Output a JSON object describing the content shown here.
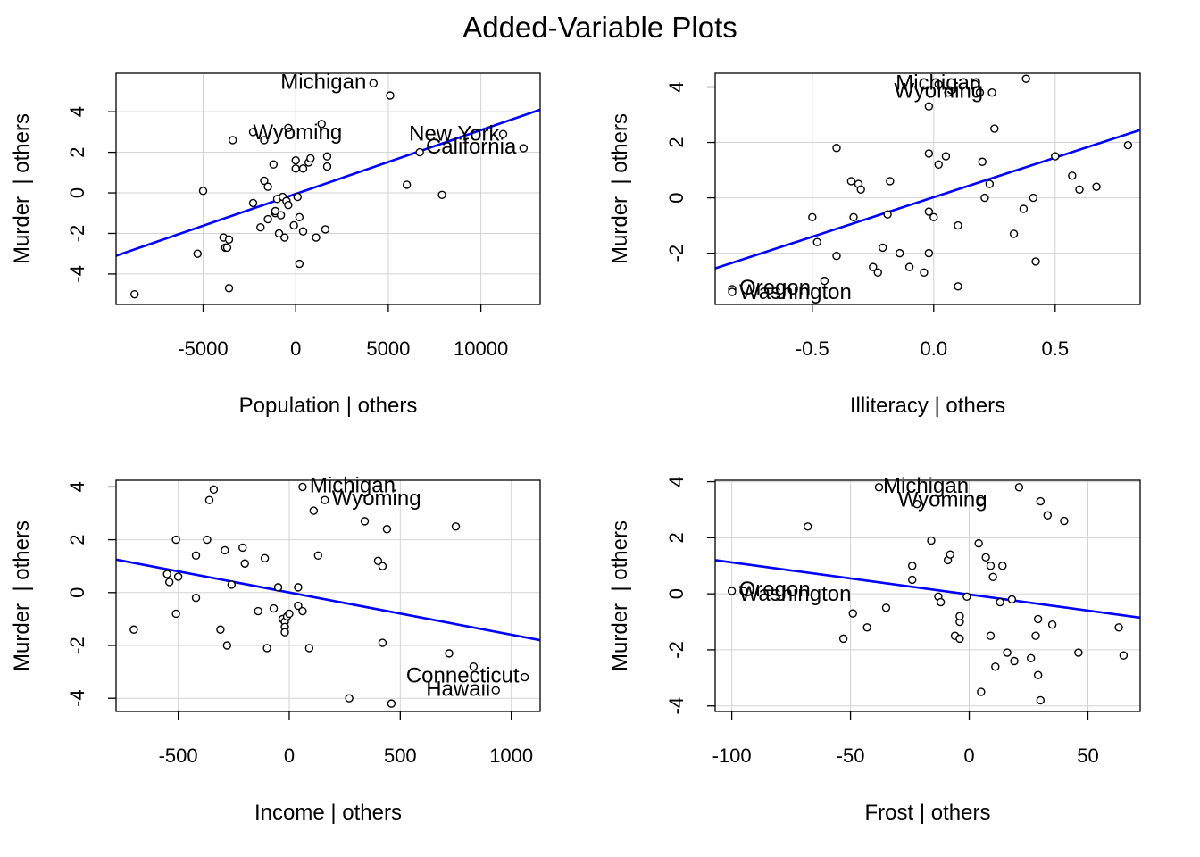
{
  "title": "Added-Variable Plots",
  "chart_data": [
    {
      "type": "scatter",
      "xlabel": "Population | others",
      "ylabel": "Murder  | others",
      "xlim": [
        -9700,
        13200
      ],
      "ylim": [
        -5.5,
        5.9
      ],
      "xticks": [
        -5000,
        0,
        5000,
        10000
      ],
      "xtick_labels": [
        "-5000",
        "0",
        "5000",
        "10000"
      ],
      "yticks": [
        -4,
        -2,
        0,
        2,
        4
      ],
      "ytick_labels": [
        "-4",
        "-2",
        "0",
        "2",
        "4"
      ],
      "grid": true,
      "fit_line": {
        "x": [
          -9700,
          13200
        ],
        "y": [
          -3.1,
          4.1
        ],
        "color": "#0000ff"
      },
      "points": [
        [
          -8700,
          -5.0
        ],
        [
          -5300,
          -3.0
        ],
        [
          -5000,
          0.1
        ],
        [
          -3900,
          -2.2
        ],
        [
          -3800,
          -2.7
        ],
        [
          -3700,
          -2.7
        ],
        [
          -3600,
          -2.3
        ],
        [
          -3600,
          -4.7
        ],
        [
          -3400,
          2.6
        ],
        [
          -2300,
          3.0
        ],
        [
          -2300,
          -0.5
        ],
        [
          -1900,
          -1.7
        ],
        [
          -1700,
          0.6
        ],
        [
          -1700,
          2.6
        ],
        [
          -1500,
          0.3
        ],
        [
          -1500,
          -1.3
        ],
        [
          -1200,
          1.4
        ],
        [
          -1100,
          -1.0
        ],
        [
          -1100,
          -0.9
        ],
        [
          -1000,
          -0.3
        ],
        [
          -900,
          -2.0
        ],
        [
          -800,
          -1.1
        ],
        [
          -700,
          -0.2
        ],
        [
          -600,
          -2.2
        ],
        [
          -500,
          -0.4
        ],
        [
          -400,
          -0.6
        ],
        [
          -400,
          3.2
        ],
        [
          -100,
          -1.6
        ],
        [
          0,
          1.2
        ],
        [
          0,
          1.6
        ],
        [
          100,
          -0.2
        ],
        [
          200,
          -1.2
        ],
        [
          200,
          -3.5
        ],
        [
          400,
          1.2
        ],
        [
          400,
          -1.9
        ],
        [
          700,
          1.5
        ],
        [
          800,
          1.7
        ],
        [
          1100,
          -2.2
        ],
        [
          1400,
          3.4
        ],
        [
          1600,
          -1.8
        ],
        [
          1700,
          1.8
        ],
        [
          1700,
          1.3
        ],
        [
          4200,
          5.4
        ],
        [
          5100,
          4.8
        ],
        [
          6000,
          0.4
        ],
        [
          6700,
          2.0
        ],
        [
          7900,
          -0.1
        ],
        [
          11200,
          2.9
        ],
        [
          12300,
          2.2
        ]
      ],
      "labels": [
        {
          "text": "Michigan",
          "x": 4200,
          "y": 5.4
        },
        {
          "text": "Wyoming",
          "x": 100,
          "y": 2.9
        },
        {
          "text": "New York",
          "x": 11200,
          "y": 2.85
        },
        {
          "text": "California",
          "x": 12300,
          "y": 2.2
        }
      ]
    },
    {
      "type": "scatter",
      "xlabel": "Illiteracy | others",
      "ylabel": "Murder  | others",
      "xlim": [
        -0.9,
        0.85
      ],
      "ylim": [
        -3.85,
        4.5
      ],
      "xticks": [
        -0.5,
        0.0,
        0.5
      ],
      "xtick_labels": [
        "-0.5",
        "0.0",
        "0.5"
      ],
      "yticks": [
        -2,
        0,
        2,
        4
      ],
      "ytick_labels": [
        "-2",
        "0",
        "2",
        "4"
      ],
      "grid": true,
      "fit_line": {
        "x": [
          -0.9,
          0.85
        ],
        "y": [
          -2.55,
          2.45
        ],
        "color": "#0000ff"
      },
      "points": [
        [
          -0.83,
          -3.3
        ],
        [
          -0.83,
          -3.4
        ],
        [
          -0.5,
          -0.7
        ],
        [
          -0.48,
          -1.6
        ],
        [
          -0.45,
          -3.0
        ],
        [
          -0.4,
          -2.1
        ],
        [
          -0.4,
          1.8
        ],
        [
          -0.34,
          0.6
        ],
        [
          -0.33,
          -0.7
        ],
        [
          -0.31,
          0.5
        ],
        [
          -0.3,
          0.3
        ],
        [
          -0.25,
          -2.5
        ],
        [
          -0.23,
          -2.7
        ],
        [
          -0.21,
          -1.8
        ],
        [
          -0.19,
          -0.6
        ],
        [
          -0.18,
          0.6
        ],
        [
          -0.14,
          -2.0
        ],
        [
          -0.1,
          -2.5
        ],
        [
          -0.04,
          -2.7
        ],
        [
          -0.02,
          -2.0
        ],
        [
          -0.02,
          3.3
        ],
        [
          -0.02,
          1.6
        ],
        [
          -0.02,
          -0.5
        ],
        [
          0.0,
          -0.7
        ],
        [
          0.02,
          1.2
        ],
        [
          0.02,
          4.1
        ],
        [
          0.05,
          1.5
        ],
        [
          0.06,
          3.8
        ],
        [
          0.1,
          -3.2
        ],
        [
          0.1,
          -1.0
        ],
        [
          0.17,
          4.1
        ],
        [
          0.19,
          3.8
        ],
        [
          0.2,
          1.3
        ],
        [
          0.21,
          0.0
        ],
        [
          0.23,
          0.5
        ],
        [
          0.24,
          3.8
        ],
        [
          0.25,
          2.5
        ],
        [
          0.33,
          -1.3
        ],
        [
          0.37,
          -0.4
        ],
        [
          0.38,
          4.3
        ],
        [
          0.41,
          0.0
        ],
        [
          0.42,
          -2.3
        ],
        [
          0.5,
          1.5
        ],
        [
          0.57,
          0.8
        ],
        [
          0.6,
          0.3
        ],
        [
          0.67,
          0.4
        ],
        [
          0.8,
          1.9
        ]
      ],
      "labels": [
        {
          "text": "Michigan",
          "x": 0.02,
          "y": 4.1
        },
        {
          "text": "Wyoming",
          "x": 0.02,
          "y": 3.8
        },
        {
          "text": "Oregon",
          "x": -0.83,
          "y": -3.3
        },
        {
          "text": "Washington",
          "x": -0.83,
          "y": -3.4
        }
      ]
    },
    {
      "type": "scatter",
      "xlabel": "Income | others",
      "ylabel": "Murder  | others",
      "xlim": [
        -780,
        1130
      ],
      "ylim": [
        -4.5,
        4.25
      ],
      "xticks": [
        -500,
        0,
        500,
        1000
      ],
      "xtick_labels": [
        "-500",
        "0",
        "500",
        "1000"
      ],
      "yticks": [
        -4,
        -2,
        0,
        2,
        4
      ],
      "ytick_labels": [
        "-4",
        "-2",
        "0",
        "2",
        "4"
      ],
      "grid": true,
      "fit_line": {
        "x": [
          -780,
          1130
        ],
        "y": [
          1.25,
          -1.8
        ],
        "color": "#0000ff"
      },
      "points": [
        [
          -700,
          -1.4
        ],
        [
          -550,
          0.7
        ],
        [
          -540,
          0.4
        ],
        [
          -510,
          -0.8
        ],
        [
          -510,
          2.0
        ],
        [
          -500,
          0.6
        ],
        [
          -420,
          1.4
        ],
        [
          -420,
          -0.2
        ],
        [
          -360,
          3.5
        ],
        [
          -340,
          3.9
        ],
        [
          -370,
          2.0
        ],
        [
          -310,
          -1.4
        ],
        [
          -290,
          1.6
        ],
        [
          -280,
          -2.0
        ],
        [
          -260,
          0.3
        ],
        [
          -210,
          1.7
        ],
        [
          -200,
          1.1
        ],
        [
          -140,
          -0.7
        ],
        [
          -110,
          1.3
        ],
        [
          -100,
          -2.1
        ],
        [
          -70,
          -0.6
        ],
        [
          -50,
          0.2
        ],
        [
          -30,
          -1.0
        ],
        [
          -20,
          -1.1
        ],
        [
          -20,
          -1.3
        ],
        [
          -20,
          -1.5
        ],
        [
          -10,
          -0.9
        ],
        [
          0,
          -0.8
        ],
        [
          40,
          0.2
        ],
        [
          40,
          -0.5
        ],
        [
          60,
          -0.7
        ],
        [
          60,
          4.0
        ],
        [
          90,
          -2.1
        ],
        [
          110,
          3.1
        ],
        [
          130,
          1.4
        ],
        [
          160,
          3.5
        ],
        [
          270,
          -4.0
        ],
        [
          340,
          2.7
        ],
        [
          400,
          1.2
        ],
        [
          420,
          -1.9
        ],
        [
          420,
          1.0
        ],
        [
          440,
          2.4
        ],
        [
          460,
          -4.2
        ],
        [
          720,
          -2.3
        ],
        [
          750,
          2.5
        ],
        [
          830,
          -2.8
        ],
        [
          930,
          -3.7
        ],
        [
          1060,
          -3.2
        ]
      ],
      "labels": [
        {
          "text": "Michigan",
          "x": 60,
          "y": 4.0
        },
        {
          "text": "Wyoming",
          "x": 160,
          "y": 3.5
        },
        {
          "text": "Connecticut",
          "x": 1060,
          "y": -3.2
        },
        {
          "text": "Hawaii",
          "x": 930,
          "y": -3.7
        }
      ]
    },
    {
      "type": "scatter",
      "xlabel": "Frost | others",
      "ylabel": "Murder  | others",
      "xlim": [
        -107,
        72
      ],
      "ylim": [
        -4.2,
        4.05
      ],
      "xticks": [
        -100,
        -50,
        0,
        50
      ],
      "xtick_labels": [
        "-100",
        "-50",
        "0",
        "50"
      ],
      "yticks": [
        -4,
        -2,
        0,
        2,
        4
      ],
      "ytick_labels": [
        "-4",
        "-2",
        "0",
        "2",
        "4"
      ],
      "grid": true,
      "fit_line": {
        "x": [
          -107,
          72
        ],
        "y": [
          1.2,
          -0.85
        ],
        "color": "#0000ff"
      },
      "points": [
        [
          -100,
          0.1
        ],
        [
          -95,
          0.1
        ],
        [
          -68,
          2.4
        ],
        [
          -53,
          -1.6
        ],
        [
          -49,
          -0.7
        ],
        [
          -43,
          -1.2
        ],
        [
          -38,
          3.8
        ],
        [
          -35,
          -0.5
        ],
        [
          -24,
          1.0
        ],
        [
          -24,
          0.5
        ],
        [
          -22,
          3.2
        ],
        [
          -16,
          1.9
        ],
        [
          -13,
          -0.1
        ],
        [
          -12,
          -0.3
        ],
        [
          -9,
          1.2
        ],
        [
          -8,
          1.4
        ],
        [
          -6,
          -1.5
        ],
        [
          -4,
          -1.6
        ],
        [
          -4,
          -1.0
        ],
        [
          -4,
          -0.8
        ],
        [
          -1,
          -0.1
        ],
        [
          4,
          1.8
        ],
        [
          5,
          3.3
        ],
        [
          5,
          -3.5
        ],
        [
          7,
          1.3
        ],
        [
          9,
          1.0
        ],
        [
          9,
          -1.5
        ],
        [
          10,
          0.6
        ],
        [
          11,
          -2.6
        ],
        [
          13,
          -0.3
        ],
        [
          14,
          1.0
        ],
        [
          16,
          -2.1
        ],
        [
          18,
          -0.2
        ],
        [
          19,
          -2.4
        ],
        [
          21,
          3.8
        ],
        [
          26,
          -2.3
        ],
        [
          28,
          -1.5
        ],
        [
          29,
          -0.9
        ],
        [
          29,
          -2.9
        ],
        [
          30,
          3.3
        ],
        [
          30,
          -3.8
        ],
        [
          33,
          2.8
        ],
        [
          35,
          -1.1
        ],
        [
          40,
          2.6
        ],
        [
          46,
          -2.1
        ],
        [
          63,
          -1.2
        ],
        [
          65,
          -2.2
        ]
      ],
      "labels": [
        {
          "text": "Michigan",
          "x": -22,
          "y": 3.8
        },
        {
          "text": "Wyoming",
          "x": -15,
          "y": 3.3
        },
        {
          "text": "Oregon",
          "x": -100,
          "y": 0.1
        },
        {
          "text": "Washington",
          "x": -100,
          "y": 0.0
        }
      ]
    }
  ]
}
